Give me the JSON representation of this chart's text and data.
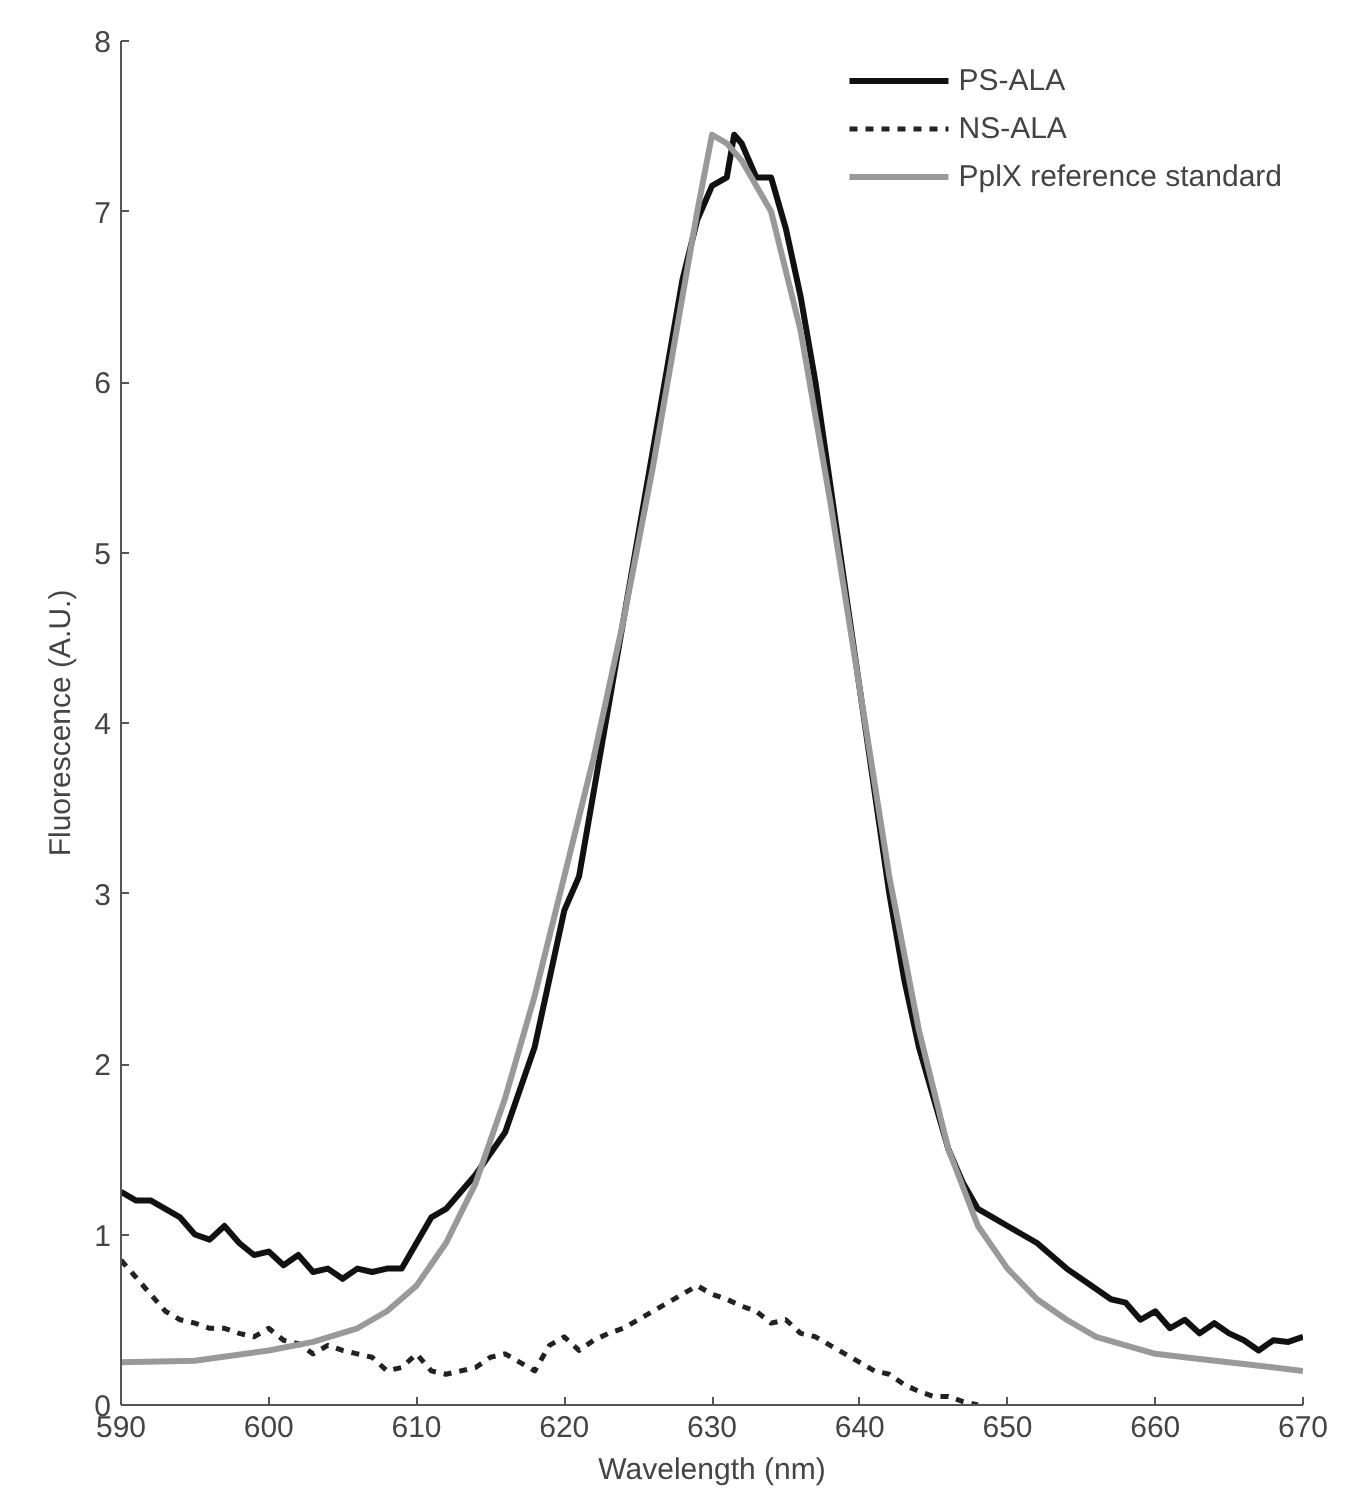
{
  "chart_data": {
    "type": "line",
    "xlabel": "Wavelength (nm)",
    "ylabel": "Fluorescence (A.U.)",
    "xlim": [
      590,
      670
    ],
    "ylim": [
      0,
      8
    ],
    "xticks": [
      590,
      600,
      610,
      620,
      630,
      640,
      650,
      660,
      670
    ],
    "yticks": [
      0,
      1,
      2,
      3,
      4,
      5,
      6,
      7,
      8
    ],
    "grid": false,
    "legend": "top right",
    "marker": "none",
    "series": [
      {
        "name": "PS-ALA",
        "color": "#111111",
        "line_style": "solid",
        "x": [
          590,
          591,
          592,
          594,
          595,
          596,
          597,
          598,
          599,
          600,
          601,
          602,
          603,
          604,
          605,
          606,
          607,
          608,
          609,
          610,
          611,
          612,
          614,
          616,
          618,
          619,
          620,
          621,
          622,
          623,
          624,
          625,
          626,
          627,
          628,
          629,
          630,
          631,
          631.5,
          632,
          633,
          634,
          635,
          636,
          637,
          638,
          639,
          640,
          641,
          642,
          643,
          644,
          645,
          646,
          647,
          648,
          649,
          650,
          652,
          654,
          656,
          657,
          658,
          659,
          660,
          661,
          662,
          663,
          664,
          665,
          666,
          667,
          668,
          669,
          670
        ],
        "values": [
          1.25,
          1.2,
          1.2,
          1.1,
          1.0,
          0.97,
          1.05,
          0.95,
          0.88,
          0.9,
          0.82,
          0.88,
          0.78,
          0.8,
          0.74,
          0.8,
          0.78,
          0.8,
          0.8,
          0.95,
          1.1,
          1.15,
          1.35,
          1.6,
          2.1,
          2.5,
          2.9,
          3.1,
          3.6,
          4.1,
          4.6,
          5.1,
          5.6,
          6.1,
          6.6,
          6.95,
          7.15,
          7.2,
          7.45,
          7.4,
          7.2,
          7.2,
          6.9,
          6.5,
          6.0,
          5.4,
          4.8,
          4.2,
          3.6,
          3.0,
          2.5,
          2.1,
          1.8,
          1.5,
          1.3,
          1.15,
          1.1,
          1.05,
          0.95,
          0.8,
          0.68,
          0.62,
          0.6,
          0.5,
          0.55,
          0.45,
          0.5,
          0.42,
          0.48,
          0.42,
          0.38,
          0.32,
          0.38,
          0.37,
          0.4
        ]
      },
      {
        "name": "NS-ALA",
        "color": "#222222",
        "line_style": "dashed",
        "x": [
          590,
          591,
          592,
          593,
          594,
          595,
          596,
          597,
          598,
          599,
          600,
          601,
          602,
          603,
          604,
          605,
          606,
          607,
          608,
          609,
          610,
          611,
          612,
          613,
          614,
          615,
          616,
          617,
          618,
          619,
          620,
          621,
          622,
          623,
          624,
          625,
          626,
          627,
          628,
          629,
          630,
          631,
          632,
          633,
          634,
          635,
          636,
          637,
          638,
          639,
          640,
          641,
          642,
          643,
          644,
          645,
          646,
          647,
          648
        ],
        "values": [
          0.85,
          0.75,
          0.65,
          0.55,
          0.5,
          0.48,
          0.45,
          0.45,
          0.42,
          0.4,
          0.45,
          0.38,
          0.36,
          0.3,
          0.35,
          0.32,
          0.3,
          0.28,
          0.2,
          0.22,
          0.3,
          0.2,
          0.18,
          0.2,
          0.22,
          0.28,
          0.3,
          0.25,
          0.2,
          0.35,
          0.4,
          0.32,
          0.38,
          0.42,
          0.45,
          0.5,
          0.55,
          0.6,
          0.65,
          0.7,
          0.65,
          0.62,
          0.58,
          0.55,
          0.48,
          0.5,
          0.42,
          0.4,
          0.35,
          0.3,
          0.25,
          0.2,
          0.18,
          0.12,
          0.08,
          0.05,
          0.05,
          0.02,
          0.0
        ]
      },
      {
        "name": "PplX reference standard",
        "color": "#999999",
        "line_style": "solid",
        "x": [
          590,
          595,
          600,
          603,
          606,
          608,
          610,
          612,
          614,
          616,
          618,
          620,
          622,
          624,
          626,
          628,
          629,
          630,
          631,
          632,
          634,
          636,
          638,
          640,
          642,
          644,
          646,
          648,
          650,
          652,
          654,
          656,
          658,
          660,
          663,
          666,
          670
        ],
        "values": [
          0.25,
          0.26,
          0.32,
          0.37,
          0.45,
          0.55,
          0.7,
          0.95,
          1.3,
          1.8,
          2.4,
          3.1,
          3.8,
          4.6,
          5.5,
          6.5,
          7.0,
          7.45,
          7.4,
          7.3,
          7.0,
          6.3,
          5.3,
          4.2,
          3.1,
          2.2,
          1.5,
          1.05,
          0.8,
          0.62,
          0.5,
          0.4,
          0.35,
          0.3,
          0.27,
          0.24,
          0.2
        ]
      }
    ]
  }
}
